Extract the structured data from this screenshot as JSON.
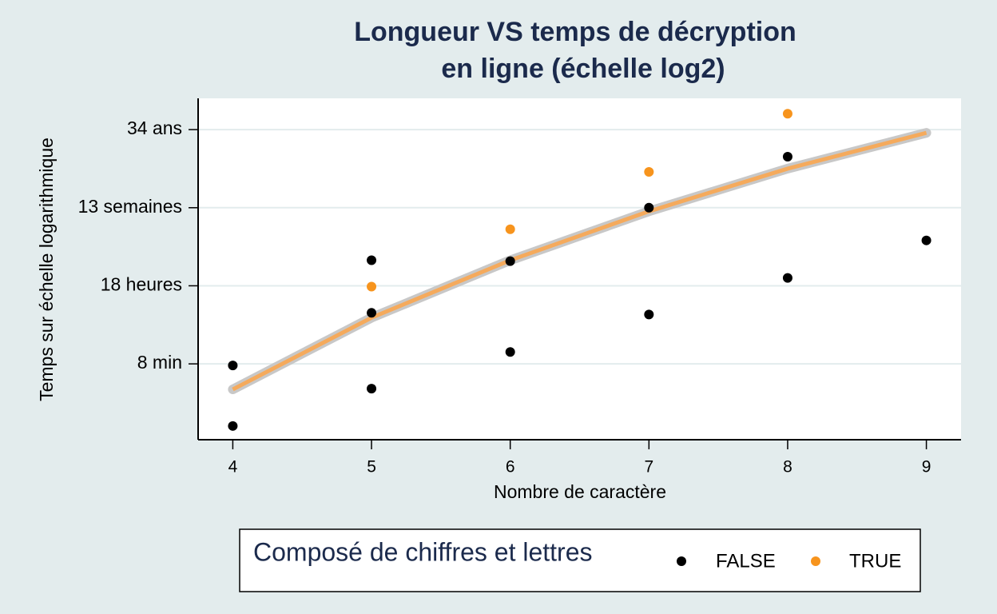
{
  "chart_data": {
    "type": "scatter",
    "title": [
      "Longueur VS temps de décryption",
      "en ligne (échelle log2)"
    ],
    "x_label": "Nombre de caractère",
    "y_label": "Temps sur échelle logarithmique",
    "yscale": "log2",
    "grid": true,
    "xlim": [
      3.75,
      9.25
    ],
    "ylim": [
      4.6,
      7500000000
    ],
    "xticks": [
      4,
      5,
      6,
      7,
      8,
      9
    ],
    "yticks": [
      {
        "value": 512,
        "label": "8 min"
      },
      {
        "value": 65536,
        "label": "18 heures"
      },
      {
        "value": 8388608,
        "label": "13 semaines"
      },
      {
        "value": 1073741824,
        "label": "34 ans"
      }
    ],
    "legend_title": "Composé de chiffres et lettres",
    "legend_position": "bottom",
    "series": [
      {
        "name": "FALSE",
        "color": "#000000",
        "x": [
          4,
          4,
          5,
          5,
          5,
          6,
          6,
          7,
          7,
          8,
          8,
          9
        ],
        "values": [
          464,
          10.8,
          320000,
          12200,
          110,
          303000,
          1075,
          8390000,
          11000,
          200000000,
          107000,
          1100000
        ]
      },
      {
        "name": "TRUE",
        "color": "#f7941d",
        "x": [
          5,
          6,
          7,
          8
        ],
        "values": [
          62400,
          2200000,
          77600000,
          2890000000
        ]
      }
    ],
    "fit": {
      "color": "#f5aa5c",
      "band_color": "#c8c8c8",
      "x": [
        4,
        5,
        6,
        7,
        8,
        9
      ],
      "values": [
        105,
        9030,
        320000,
        6700000,
        95000000,
        880000000
      ]
    }
  }
}
